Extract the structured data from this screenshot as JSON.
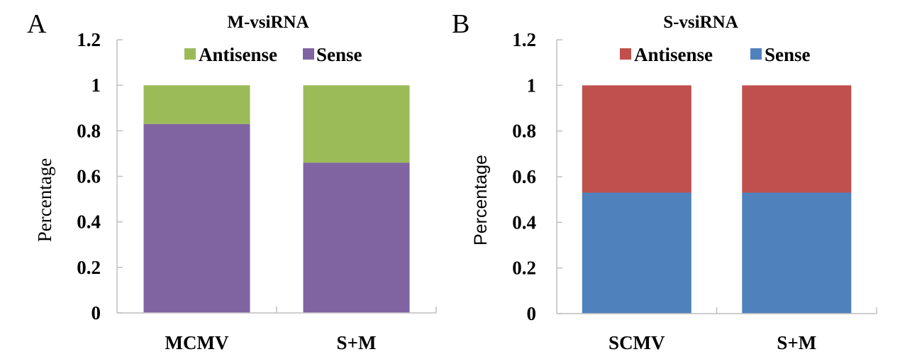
{
  "chart_data": [
    {
      "type": "bar",
      "stacked": true,
      "panel": "A",
      "title": "M-vsiRNA",
      "xlabel": "",
      "ylabel": "Percentage",
      "ylim": [
        0,
        1.2
      ],
      "yticks": [
        "0",
        "0.2",
        "0.4",
        "0.6",
        "0.8",
        "1",
        "1.2"
      ],
      "categories": [
        "MCMV",
        "S+M"
      ],
      "legend_position": "top",
      "series": [
        {
          "name": "Sense",
          "color": "#8064a2",
          "values": [
            0.83,
            0.66
          ]
        },
        {
          "name": "Antisense",
          "color": "#9bbb59",
          "values": [
            0.17,
            0.34
          ]
        }
      ],
      "legend": [
        {
          "name": "Antisense",
          "color": "#9bbb59"
        },
        {
          "name": "Sense",
          "color": "#8064a2"
        }
      ]
    },
    {
      "type": "bar",
      "stacked": true,
      "panel": "B",
      "title": "S-vsiRNA",
      "xlabel": "",
      "ylabel": "Percentage",
      "ylim": [
        0,
        1.2
      ],
      "yticks": [
        "0",
        "0.2",
        "0.4",
        "0.6",
        "0.8",
        "1",
        "1.2"
      ],
      "categories": [
        "SCMV",
        "S+M"
      ],
      "legend_position": "top",
      "series": [
        {
          "name": "Sense",
          "color": "#4f81bd",
          "values": [
            0.53,
            0.53
          ]
        },
        {
          "name": "Antisense",
          "color": "#c0504d",
          "values": [
            0.47,
            0.47
          ]
        }
      ],
      "legend": [
        {
          "name": "Antisense",
          "color": "#c0504d"
        },
        {
          "name": "Sense",
          "color": "#4f81bd"
        }
      ]
    }
  ]
}
